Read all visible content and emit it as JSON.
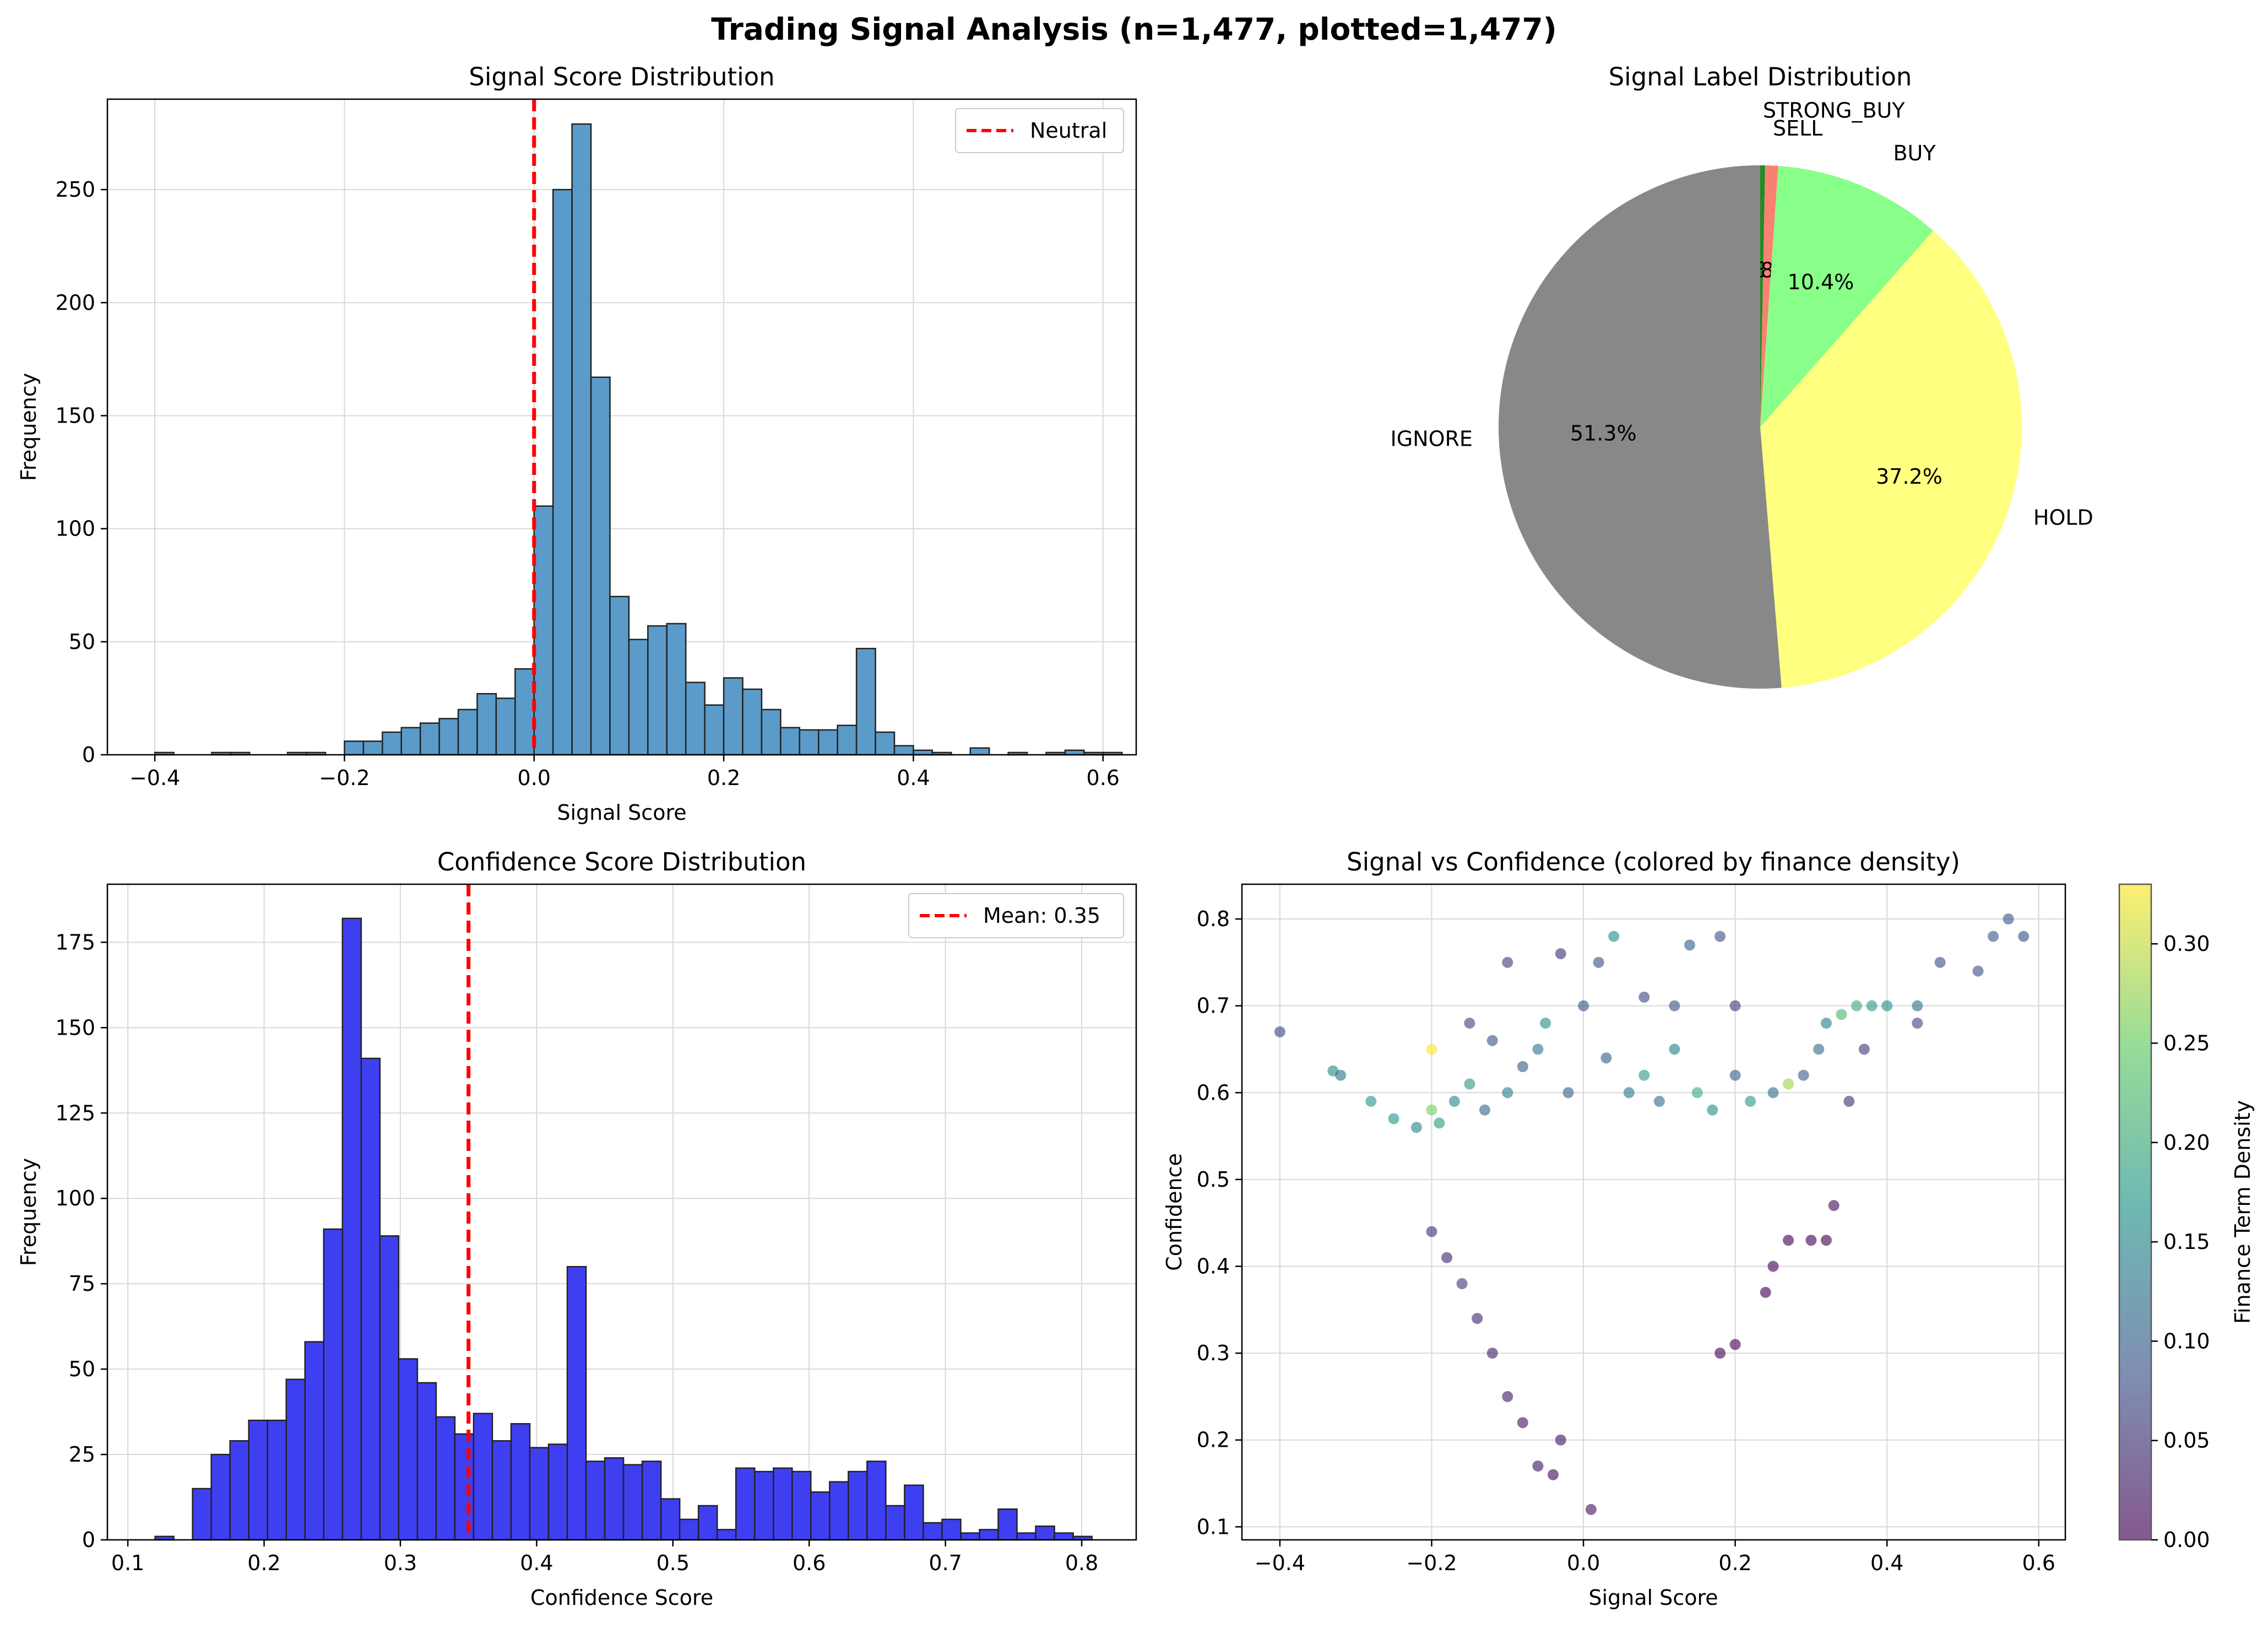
{
  "suptitle": "Trading Signal Analysis (n=1,477, plotted=1,477)",
  "colors": {
    "hist1": "#5b9bc9",
    "hist2": "#3f3ff2",
    "ref_line": "#ff0000",
    "grid": "#d9d9d9",
    "pie_strong_buy": "#228b22",
    "pie_sell": "#fa8072",
    "pie_buy": "#88ff88",
    "pie_hold": "#ffff80",
    "pie_ignore": "#888888"
  },
  "chart_data": [
    {
      "type": "bar",
      "title": "Signal Score Distribution",
      "xlabel": "Signal Score",
      "ylabel": "Frequency",
      "xlim": [
        -0.45,
        0.635
      ],
      "ylim": [
        0,
        290
      ],
      "xticks": [
        -0.4,
        -0.2,
        0.0,
        0.2,
        0.4,
        0.6
      ],
      "xtick_labels": [
        "−0.4",
        "−0.2",
        "0.0",
        "0.2",
        "0.4",
        "0.6"
      ],
      "yticks": [
        0,
        50,
        100,
        150,
        200,
        250
      ],
      "ytick_labels": [
        "0",
        "50",
        "100",
        "150",
        "200",
        "250"
      ],
      "bin_start": -0.4,
      "bin_width": 0.02,
      "values": [
        1,
        0,
        0,
        1,
        1,
        0,
        0,
        1,
        1,
        0,
        6,
        6,
        10,
        12,
        14,
        16,
        20,
        27,
        25,
        38,
        110,
        250,
        279,
        167,
        70,
        51,
        57,
        58,
        32,
        22,
        34,
        29,
        20,
        12,
        11,
        11,
        13,
        47,
        10,
        4,
        2,
        1,
        0,
        3,
        0,
        1,
        0,
        1,
        2,
        1,
        1
      ],
      "ref_line": {
        "x": 0.0,
        "label": "Neutral"
      },
      "legend": "top-right",
      "grid": true
    },
    {
      "type": "pie",
      "title": "Signal Label Distribution",
      "slices": [
        {
          "label": "STRONG_BUY",
          "pct": 0.3,
          "pct_label": "0.3%"
        },
        {
          "label": "SELL",
          "pct": 0.8,
          "pct_label": "0.8%"
        },
        {
          "label": "BUY",
          "pct": 10.4,
          "pct_label": "10.4%"
        },
        {
          "label": "HOLD",
          "pct": 37.2,
          "pct_label": "37.2%"
        },
        {
          "label": "IGNORE",
          "pct": 51.3,
          "pct_label": "51.3%"
        }
      ],
      "start_angle": 90,
      "direction": "clockwise"
    },
    {
      "type": "bar",
      "title": "Confidence Score Distribution",
      "xlabel": "Confidence Score",
      "ylabel": "Frequency",
      "xlim": [
        0.085,
        0.84
      ],
      "ylim": [
        0,
        192
      ],
      "xticks": [
        0.1,
        0.2,
        0.3,
        0.4,
        0.5,
        0.6,
        0.7,
        0.8
      ],
      "xtick_labels": [
        "0.1",
        "0.2",
        "0.3",
        "0.4",
        "0.5",
        "0.6",
        "0.7",
        "0.8"
      ],
      "yticks": [
        0,
        25,
        50,
        75,
        100,
        125,
        150,
        175
      ],
      "ytick_labels": [
        "0",
        "25",
        "50",
        "75",
        "100",
        "125",
        "150",
        "175"
      ],
      "bin_start": 0.12,
      "bin_width": 0.01375,
      "values": [
        1,
        0,
        15,
        25,
        29,
        35,
        35,
        47,
        58,
        91,
        182,
        141,
        89,
        53,
        46,
        36,
        31,
        37,
        29,
        34,
        27,
        28,
        80,
        23,
        24,
        22,
        23,
        12,
        6,
        10,
        3,
        21,
        20,
        21,
        20,
        14,
        17,
        20,
        23,
        10,
        16,
        5,
        6,
        2,
        3,
        9,
        2,
        4,
        2,
        1
      ],
      "ref_line": {
        "x": 0.35,
        "label": "Mean: 0.35"
      },
      "legend": "top-right",
      "grid": true
    },
    {
      "type": "scatter",
      "title": "Signal vs Confidence (colored by finance density)",
      "xlabel": "Signal Score",
      "ylabel": "Confidence",
      "xlim": [
        -0.45,
        0.635
      ],
      "ylim": [
        0.085,
        0.84
      ],
      "xticks": [
        -0.4,
        -0.2,
        0.0,
        0.2,
        0.4,
        0.6
      ],
      "xtick_labels": [
        "−0.4",
        "−0.2",
        "0.0",
        "0.2",
        "0.4",
        "0.6"
      ],
      "yticks": [
        0.1,
        0.2,
        0.3,
        0.4,
        0.5,
        0.6,
        0.7,
        0.8
      ],
      "ytick_labels": [
        "0.1",
        "0.2",
        "0.3",
        "0.4",
        "0.5",
        "0.6",
        "0.7",
        "0.8"
      ],
      "colorbar": {
        "label": "Finance Term Density",
        "min": 0.0,
        "max": 0.33,
        "ticks": [
          0.0,
          0.05,
          0.1,
          0.15,
          0.2,
          0.25,
          0.3
        ],
        "tick_labels": [
          "0.00",
          "0.05",
          "0.10",
          "0.15",
          "0.20",
          "0.25",
          "0.30"
        ]
      },
      "points": [
        [
          -0.4,
          0.67,
          0.07
        ],
        [
          -0.33,
          0.625,
          0.16
        ],
        [
          -0.32,
          0.62,
          0.12
        ],
        [
          -0.28,
          0.59,
          0.17
        ],
        [
          -0.25,
          0.57,
          0.17
        ],
        [
          -0.22,
          0.56,
          0.15
        ],
        [
          -0.2,
          0.65,
          0.33
        ],
        [
          -0.2,
          0.58,
          0.26
        ],
        [
          -0.19,
          0.565,
          0.18
        ],
        [
          -0.17,
          0.59,
          0.15
        ],
        [
          -0.15,
          0.61,
          0.18
        ],
        [
          -0.13,
          0.58,
          0.11
        ],
        [
          -0.1,
          0.6,
          0.14
        ],
        [
          -0.08,
          0.63,
          0.1
        ],
        [
          -0.06,
          0.65,
          0.13
        ],
        [
          -0.05,
          0.68,
          0.16
        ],
        [
          -0.02,
          0.6,
          0.1
        ],
        [
          0.0,
          0.7,
          0.08
        ],
        [
          0.02,
          0.75,
          0.08
        ],
        [
          0.03,
          0.64,
          0.1
        ],
        [
          0.06,
          0.6,
          0.13
        ],
        [
          0.08,
          0.62,
          0.18
        ],
        [
          0.1,
          0.59,
          0.12
        ],
        [
          0.12,
          0.65,
          0.14
        ],
        [
          0.15,
          0.6,
          0.2
        ],
        [
          0.17,
          0.58,
          0.16
        ],
        [
          0.2,
          0.62,
          0.1
        ],
        [
          0.22,
          0.59,
          0.18
        ],
        [
          0.25,
          0.6,
          0.12
        ],
        [
          0.27,
          0.61,
          0.28
        ],
        [
          0.29,
          0.62,
          0.1
        ],
        [
          0.31,
          0.65,
          0.12
        ],
        [
          0.32,
          0.68,
          0.14
        ],
        [
          0.34,
          0.69,
          0.22
        ],
        [
          0.36,
          0.7,
          0.2
        ],
        [
          0.38,
          0.7,
          0.18
        ],
        [
          0.4,
          0.7,
          0.16
        ],
        [
          0.44,
          0.7,
          0.12
        ],
        [
          0.47,
          0.75,
          0.08
        ],
        [
          0.52,
          0.74,
          0.08
        ],
        [
          0.54,
          0.78,
          0.09
        ],
        [
          0.56,
          0.8,
          0.09
        ],
        [
          0.58,
          0.78,
          0.08
        ],
        [
          0.44,
          0.68,
          0.07
        ],
        [
          0.37,
          0.65,
          0.06
        ],
        [
          -0.1,
          0.75,
          0.06
        ],
        [
          -0.03,
          0.76,
          0.05
        ],
        [
          0.04,
          0.78,
          0.16
        ],
        [
          0.14,
          0.77,
          0.1
        ],
        [
          0.18,
          0.78,
          0.08
        ],
        [
          0.01,
          0.12,
          0.02
        ],
        [
          0.35,
          0.59,
          0.05
        ],
        [
          0.33,
          0.47,
          0.01
        ],
        [
          0.32,
          0.43,
          0.0
        ],
        [
          0.3,
          0.43,
          0.0
        ],
        [
          0.27,
          0.43,
          0.0
        ],
        [
          0.25,
          0.4,
          0.0
        ],
        [
          0.24,
          0.37,
          0.0
        ],
        [
          0.2,
          0.31,
          0.0
        ],
        [
          0.18,
          0.3,
          0.0
        ],
        [
          -0.2,
          0.44,
          0.05
        ],
        [
          -0.18,
          0.41,
          0.04
        ],
        [
          -0.16,
          0.38,
          0.06
        ],
        [
          -0.14,
          0.34,
          0.04
        ],
        [
          -0.12,
          0.3,
          0.03
        ],
        [
          -0.1,
          0.25,
          0.03
        ],
        [
          -0.08,
          0.22,
          0.02
        ],
        [
          -0.06,
          0.17,
          0.02
        ],
        [
          -0.04,
          0.16,
          0.01
        ],
        [
          -0.03,
          0.2,
          0.02
        ],
        [
          -0.15,
          0.68,
          0.07
        ],
        [
          -0.12,
          0.66,
          0.08
        ],
        [
          0.08,
          0.71,
          0.07
        ],
        [
          0.12,
          0.7,
          0.08
        ],
        [
          0.2,
          0.7,
          0.06
        ]
      ]
    }
  ]
}
